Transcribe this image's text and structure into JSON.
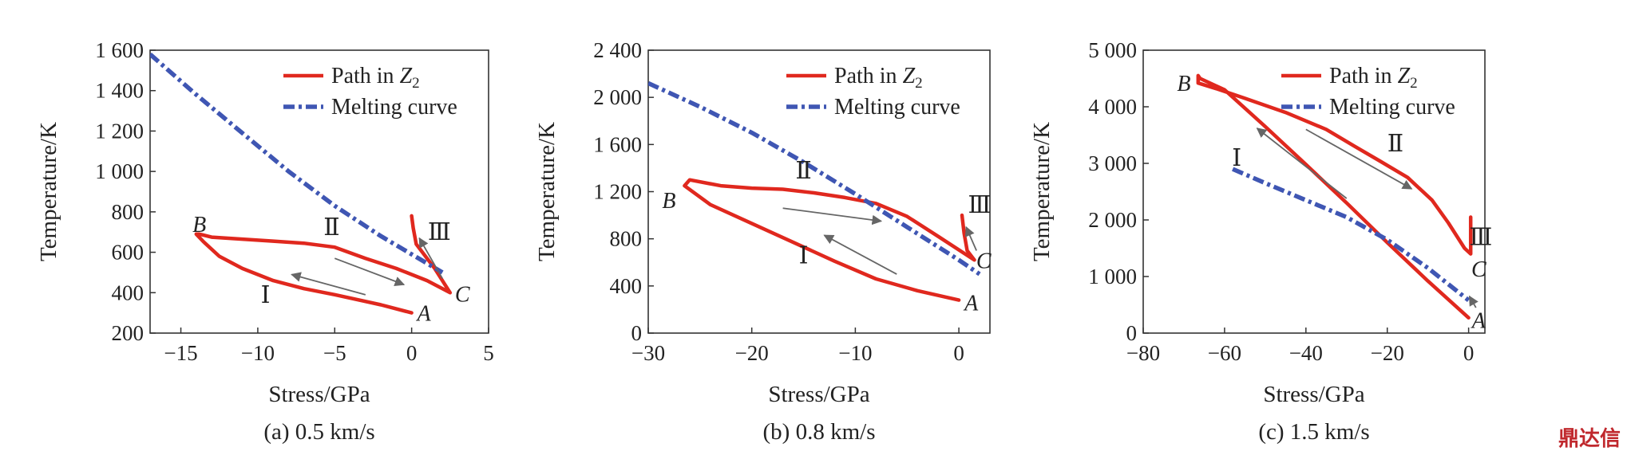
{
  "chart_data": [
    {
      "type": "line",
      "caption": "(a) 0.5 km/s",
      "xlabel": "Stress/GPa",
      "ylabel": "Temperature/K",
      "xlim": [
        -17,
        5
      ],
      "ylim": [
        200,
        1600
      ],
      "xticks": [
        -15,
        -10,
        -5,
        0,
        5
      ],
      "xtick_labels": [
        "−15",
        "−10",
        "−5",
        "0",
        "5"
      ],
      "yticks": [
        200,
        400,
        600,
        800,
        1000,
        1200,
        1400,
        1600
      ],
      "ytick_labels": [
        "200",
        "400",
        "600",
        "800",
        "1 000",
        "1 200",
        "1 400",
        "1 600"
      ],
      "legend": {
        "position": "top-right",
        "path_label": "Path in ",
        "path_sym": "Z",
        "path_sub": "2",
        "melt_label": "Melting curve"
      },
      "series": [
        {
          "role": "path",
          "color": "#e0281e",
          "x": [
            0,
            -2,
            -5,
            -7,
            -9,
            -11,
            -12.5,
            -13.5,
            -14,
            -13.8,
            -13,
            -11,
            -9,
            -7,
            -5,
            -3,
            -1,
            1,
            2.5,
            1.5,
            0.3,
            0.1,
            0
          ],
          "y": [
            300,
            340,
            390,
            420,
            460,
            520,
            580,
            650,
            690,
            690,
            675,
            665,
            655,
            645,
            625,
            570,
            520,
            460,
            400,
            520,
            640,
            720,
            780
          ]
        },
        {
          "role": "melting",
          "color": "#3f56b3",
          "x": [
            -17,
            -14,
            -11,
            -8,
            -5,
            -2,
            0,
            2
          ],
          "y": [
            1580,
            1380,
            1190,
            1000,
            830,
            680,
            590,
            500
          ]
        }
      ],
      "point_labels": [
        {
          "text": "A",
          "x": 0.8,
          "y": 300
        },
        {
          "text": "B",
          "x": -13.8,
          "y": 740
        },
        {
          "text": "C",
          "x": 3.3,
          "y": 395
        }
      ],
      "region_labels": [
        {
          "text": "Ⅰ",
          "x": -9.5,
          "y": 390
        },
        {
          "text": "Ⅱ",
          "x": -5.2,
          "y": 725
        },
        {
          "text": "Ⅲ",
          "x": 1.8,
          "y": 700
        }
      ],
      "arrows": [
        {
          "x1": -3,
          "y1": 390,
          "x2": -7.8,
          "y2": 490
        },
        {
          "x1": -5,
          "y1": 570,
          "x2": -0.5,
          "y2": 440
        },
        {
          "x1": 2,
          "y1": 470,
          "x2": 0.5,
          "y2": 670
        }
      ]
    },
    {
      "type": "line",
      "caption": "(b) 0.8 km/s",
      "xlabel": "Stress/GPa",
      "ylabel": "Temperature/K",
      "xlim": [
        -30,
        3
      ],
      "ylim": [
        0,
        2400
      ],
      "xticks": [
        -30,
        -20,
        -10,
        0
      ],
      "xtick_labels": [
        "−30",
        "−20",
        "−10",
        "0"
      ],
      "yticks": [
        0,
        400,
        800,
        1200,
        1600,
        2000,
        2400
      ],
      "ytick_labels": [
        "0",
        "400",
        "800",
        "1 200",
        "1 600",
        "2 000",
        "2 400"
      ],
      "legend": {
        "position": "top-right",
        "path_label": "Path in ",
        "path_sym": "Z",
        "path_sub": "2",
        "melt_label": "Melting curve"
      },
      "series": [
        {
          "role": "path",
          "color": "#e0281e",
          "x": [
            0,
            -4,
            -8,
            -12,
            -16,
            -20,
            -24,
            -26.5,
            -26,
            -23,
            -20,
            -17,
            -14,
            -11,
            -8,
            -5,
            -2,
            1.5,
            0.8,
            0.5,
            0.3
          ],
          "y": [
            280,
            360,
            460,
            610,
            770,
            930,
            1090,
            1250,
            1300,
            1250,
            1230,
            1220,
            1190,
            1150,
            1100,
            990,
            820,
            620,
            700,
            850,
            1000
          ],
          "_note": ""
        },
        {
          "role": "melting",
          "color": "#3f56b3",
          "x": [
            -30,
            -25,
            -20,
            -15,
            -10,
            -5,
            0,
            2
          ],
          "y": [
            2120,
            1920,
            1700,
            1450,
            1180,
            900,
            620,
            500
          ]
        }
      ],
      "point_labels": [
        {
          "text": "A",
          "x": 1.2,
          "y": 260
        },
        {
          "text": "B",
          "x": -28,
          "y": 1130
        },
        {
          "text": "C",
          "x": 2.4,
          "y": 620
        }
      ],
      "region_labels": [
        {
          "text": "Ⅰ",
          "x": -15,
          "y": 660
        },
        {
          "text": "Ⅱ",
          "x": -15,
          "y": 1380
        },
        {
          "text": "Ⅲ",
          "x": 2,
          "y": 1090
        }
      ],
      "arrows": [
        {
          "x1": -6,
          "y1": 500,
          "x2": -13,
          "y2": 830
        },
        {
          "x1": -17,
          "y1": 1060,
          "x2": -7.5,
          "y2": 950
        },
        {
          "x1": 1.7,
          "y1": 700,
          "x2": 0.7,
          "y2": 900
        }
      ]
    },
    {
      "type": "line",
      "caption": "(c) 1.5 km/s",
      "xlabel": "Stress/GPa",
      "ylabel": "Temperature/K",
      "xlim": [
        -80,
        4
      ],
      "ylim": [
        0,
        5000
      ],
      "xticks": [
        -80,
        -60,
        -40,
        -20,
        0
      ],
      "xtick_labels": [
        "−80",
        "−60",
        "−40",
        "−20",
        "0"
      ],
      "yticks": [
        0,
        1000,
        2000,
        3000,
        4000,
        5000
      ],
      "ytick_labels": [
        "0",
        "1 000",
        "2 000",
        "3 000",
        "4 000",
        "5 000"
      ],
      "legend": {
        "position": "top-right",
        "path_label": "Path in ",
        "path_sym": "Z",
        "path_sub": "2",
        "melt_label": "Melting curve"
      },
      "series": [
        {
          "role": "path",
          "color": "#e0281e",
          "x": [
            0,
            -10,
            -20,
            -30,
            -40,
            -50,
            -60,
            -66,
            -66.5,
            -66.5,
            -62,
            -55,
            -45,
            -35,
            -28,
            -22,
            -15,
            -9,
            -5,
            -1,
            0.5,
            0.5
          ],
          "y": [
            270,
            920,
            1600,
            2300,
            2980,
            3650,
            4300,
            4500,
            4550,
            4420,
            4320,
            4150,
            3900,
            3600,
            3300,
            3050,
            2750,
            2350,
            1950,
            1500,
            1400,
            2050
          ]
        },
        {
          "role": "melting",
          "color": "#3f56b3",
          "x": [
            -58,
            -50,
            -40,
            -30,
            -20,
            -10,
            0
          ],
          "y": [
            2900,
            2650,
            2350,
            2050,
            1650,
            1150,
            580
          ]
        }
      ],
      "point_labels": [
        {
          "text": "A",
          "x": 2.5,
          "y": 230
        },
        {
          "text": "B",
          "x": -70,
          "y": 4420
        },
        {
          "text": "C",
          "x": 2.5,
          "y": 1140
        }
      ],
      "region_labels": [
        {
          "text": "Ⅰ",
          "x": -57,
          "y": 3100
        },
        {
          "text": "Ⅱ",
          "x": -18,
          "y": 3350
        },
        {
          "text": "Ⅲ",
          "x": 3,
          "y": 1700
        }
      ],
      "arrows": [
        {
          "x1": -30,
          "y1": 2380,
          "x2": -52,
          "y2": 3620
        },
        {
          "x1": -40,
          "y1": 3600,
          "x2": -14,
          "y2": 2550
        },
        {
          "x1": 1.8,
          "y1": 450,
          "x2": 0.2,
          "y2": 650
        }
      ]
    }
  ],
  "logo": {
    "text": "鼎达信"
  }
}
